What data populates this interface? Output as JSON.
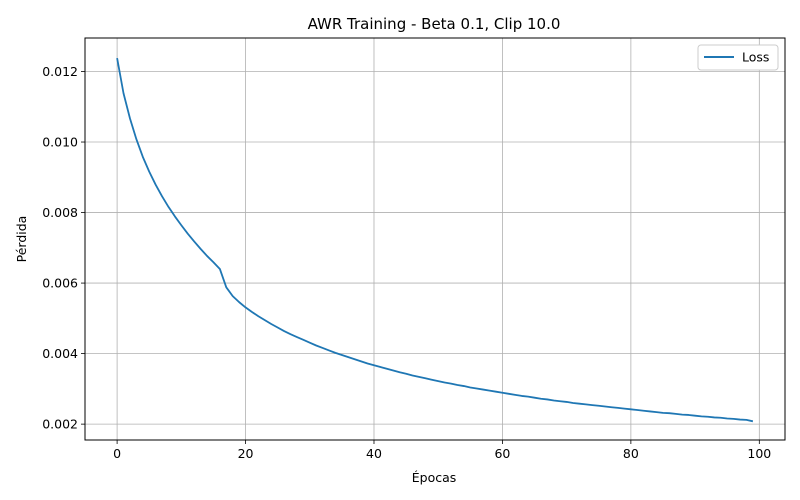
{
  "chart_data": {
    "type": "line",
    "title": "AWR Training - Beta 0.1, Clip 10.0",
    "xlabel": "Épocas",
    "ylabel": "Pérdida",
    "xlim": [
      -5,
      104
    ],
    "ylim": [
      0.00155,
      0.01295
    ],
    "x_ticks": [
      0,
      20,
      40,
      60,
      80,
      100
    ],
    "y_ticks": [
      0.002,
      0.004,
      0.006,
      0.008,
      0.01,
      0.012
    ],
    "x_tick_labels": [
      "0",
      "20",
      "40",
      "60",
      "80",
      "100"
    ],
    "y_tick_labels": [
      "0.002",
      "0.004",
      "0.006",
      "0.008",
      "0.010",
      "0.012"
    ],
    "grid": true,
    "legend_position": "top-right",
    "series": [
      {
        "name": "Loss",
        "color": "#1f77b4",
        "x": [
          0,
          1,
          2,
          3,
          4,
          5,
          6,
          7,
          8,
          9,
          10,
          11,
          12,
          13,
          14,
          15,
          16,
          17,
          18,
          19,
          20,
          21,
          22,
          23,
          24,
          25,
          26,
          27,
          28,
          29,
          30,
          31,
          32,
          33,
          34,
          35,
          36,
          37,
          38,
          39,
          40,
          41,
          42,
          43,
          44,
          45,
          46,
          47,
          48,
          49,
          50,
          51,
          52,
          53,
          54,
          55,
          56,
          57,
          58,
          59,
          60,
          61,
          62,
          63,
          64,
          65,
          66,
          67,
          68,
          69,
          70,
          71,
          72,
          73,
          74,
          75,
          76,
          77,
          78,
          79,
          80,
          81,
          82,
          83,
          84,
          85,
          86,
          87,
          88,
          89,
          90,
          91,
          92,
          93,
          94,
          95,
          96,
          97,
          98,
          99
        ],
        "values": [
          0.01238,
          0.01138,
          0.01067,
          0.01008,
          0.00958,
          0.00916,
          0.00879,
          0.00846,
          0.00816,
          0.00789,
          0.00764,
          0.0074,
          0.00718,
          0.00697,
          0.00677,
          0.00659,
          0.0064,
          0.00588,
          0.00563,
          0.00546,
          0.00531,
          0.00518,
          0.00506,
          0.00495,
          0.00484,
          0.00474,
          0.00464,
          0.00455,
          0.00447,
          0.00439,
          0.00431,
          0.00423,
          0.00416,
          0.00409,
          0.00402,
          0.00396,
          0.0039,
          0.00384,
          0.00378,
          0.00372,
          0.00367,
          0.00362,
          0.00357,
          0.00352,
          0.00347,
          0.00343,
          0.00338,
          0.00334,
          0.0033,
          0.00326,
          0.00322,
          0.00318,
          0.00315,
          0.00311,
          0.00308,
          0.00304,
          0.00301,
          0.00298,
          0.00295,
          0.00292,
          0.00289,
          0.00286,
          0.00283,
          0.0028,
          0.00278,
          0.00275,
          0.00272,
          0.0027,
          0.00267,
          0.00265,
          0.00263,
          0.0026,
          0.00258,
          0.00256,
          0.00254,
          0.00252,
          0.0025,
          0.00248,
          0.00246,
          0.00244,
          0.00242,
          0.0024,
          0.00238,
          0.00236,
          0.00234,
          0.00232,
          0.00231,
          0.00229,
          0.00227,
          0.00226,
          0.00224,
          0.00222,
          0.00221,
          0.00219,
          0.00218,
          0.00216,
          0.00215,
          0.00213,
          0.00212,
          0.00208
        ]
      }
    ]
  }
}
